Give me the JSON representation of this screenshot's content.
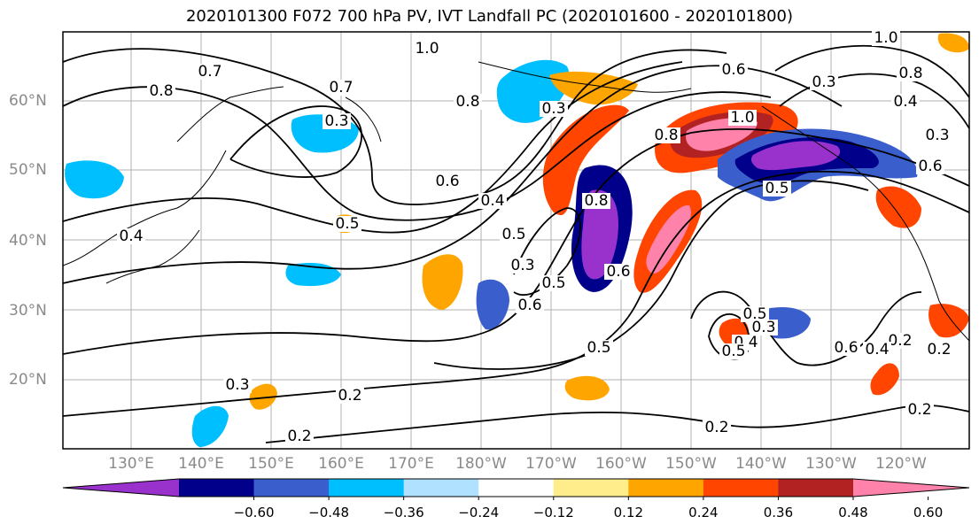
{
  "title": "2020101300 F072 700 hPa PV, IVT Landfall PC (2020101600 - 2020101800)",
  "map": {
    "lat_labels": [
      "60°N",
      "50°N",
      "40°N",
      "30°N",
      "20°N"
    ],
    "lon_labels": [
      "130°E",
      "140°E",
      "150°E",
      "160°E",
      "170°E",
      "180°W",
      "170°W",
      "160°W",
      "150°W",
      "140°W",
      "130°W",
      "120°W"
    ],
    "contour_labels": [
      "1.0",
      "0.7",
      "0.8",
      "0.3",
      "0.7",
      "0.8",
      "0.3",
      "1.0",
      "0.8",
      "0.6",
      "1.0",
      "0.8",
      "0.3",
      "0.4",
      "0.6",
      "0.3",
      "0.6",
      "0.4",
      "0.5",
      "0.5",
      "0.3",
      "0.4",
      "0.5",
      "0.8",
      "0.6",
      "0.6",
      "0.5",
      "0.2",
      "0.4",
      "0.5",
      "0.3",
      "0.5",
      "0.6",
      "0.4",
      "0.5",
      "0.2",
      "0.3",
      "0.2",
      "0.2",
      "0.2",
      "0.2"
    ],
    "land_color": "#000000",
    "grid_color": "#b0b0b0"
  },
  "colorbar": {
    "tick_labels": [
      "−0.60",
      "−0.48",
      "−0.36",
      "−0.24",
      "−0.12",
      "0.12",
      "0.24",
      "0.36",
      "0.48",
      "0.60"
    ],
    "colors": [
      "#9932cc",
      "#00008b",
      "#3a5fcd",
      "#00bfff",
      "#b0e2ff",
      "#ffffff",
      "#ffec8b",
      "#ffa500",
      "#ff4500",
      "#b22222",
      "#ff82ab"
    ]
  }
}
